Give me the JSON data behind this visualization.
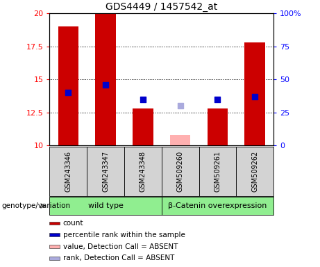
{
  "title": "GDS4449 / 1457542_at",
  "samples": [
    "GSM243346",
    "GSM243347",
    "GSM243348",
    "GSM509260",
    "GSM509261",
    "GSM509262"
  ],
  "bar_values": [
    19.0,
    20.0,
    12.8,
    10.8,
    12.8,
    17.8
  ],
  "bar_colors": [
    "#cc0000",
    "#cc0000",
    "#cc0000",
    "#ffb0b0",
    "#cc0000",
    "#cc0000"
  ],
  "dot_values": [
    14.0,
    14.6,
    13.5,
    13.0,
    13.5,
    13.7
  ],
  "dot_colors": [
    "#0000cc",
    "#0000cc",
    "#0000cc",
    "#aaaadd",
    "#0000cc",
    "#0000cc"
  ],
  "ylim_left": [
    10,
    20
  ],
  "ylim_right": [
    0,
    100
  ],
  "yticks_left": [
    10,
    12.5,
    15,
    17.5,
    20
  ],
  "yticks_right": [
    0,
    25,
    50,
    75,
    100
  ],
  "yticklabels_right": [
    "0",
    "25",
    "50",
    "75",
    "100%"
  ],
  "bar_width": 0.55,
  "dot_size": 30,
  "wt_color": "#90EE90",
  "bc_color": "#90EE90",
  "label_bg": "#d3d3d3",
  "grid_ticks": [
    12.5,
    15,
    17.5
  ],
  "legend_items": [
    {
      "label": "count",
      "color": "#cc0000"
    },
    {
      "label": "percentile rank within the sample",
      "color": "#0000cc"
    },
    {
      "label": "value, Detection Call = ABSENT",
      "color": "#ffb0b0"
    },
    {
      "label": "rank, Detection Call = ABSENT",
      "color": "#aaaadd"
    }
  ],
  "genotype_label": "genotype/variation"
}
